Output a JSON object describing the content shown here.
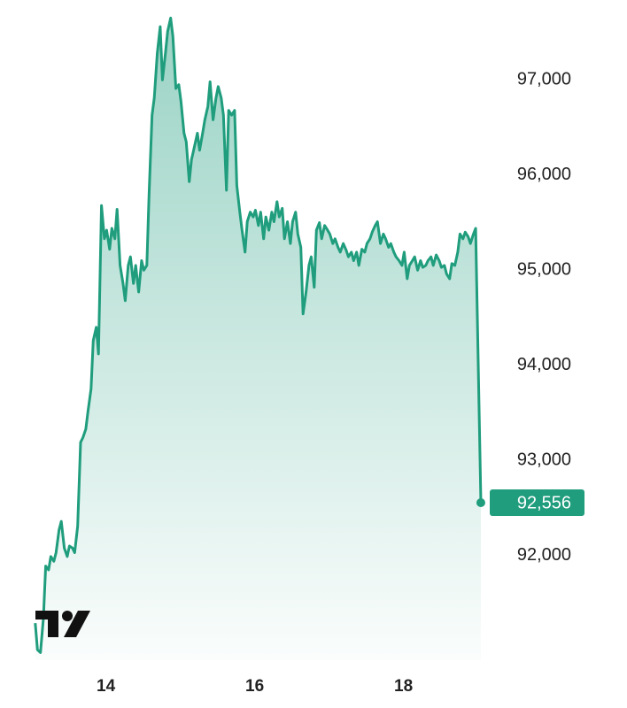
{
  "chart_data": {
    "type": "area",
    "color": "#1f9d7d",
    "xlim": [
      12.6,
      19.1
    ],
    "ylim": [
      90900,
      97840
    ],
    "xticks": [
      14,
      16,
      18
    ],
    "yticks": [
      {
        "value": 92000,
        "label": "92,000"
      },
      {
        "value": 93000,
        "label": "93,000"
      },
      {
        "value": 94000,
        "label": "94,000"
      },
      {
        "value": 95000,
        "label": "95,000"
      },
      {
        "value": 96000,
        "label": "96,000"
      },
      {
        "value": 97000,
        "label": "97,000"
      }
    ],
    "x": [
      13.05,
      13.08,
      13.12,
      13.16,
      13.19,
      13.23,
      13.26,
      13.3,
      13.33,
      13.37,
      13.4,
      13.44,
      13.48,
      13.51,
      13.55,
      13.58,
      13.62,
      13.66,
      13.69,
      13.73,
      13.76,
      13.8,
      13.83,
      13.87,
      13.9,
      13.94,
      13.98,
      14.01,
      14.05,
      14.08,
      14.12,
      14.15,
      14.19,
      14.23,
      14.26,
      14.3,
      14.33,
      14.37,
      14.4,
      14.44,
      14.48,
      14.51,
      14.55,
      14.58,
      14.62,
      14.65,
      14.69,
      14.73,
      14.76,
      14.8,
      14.83,
      14.87,
      14.9,
      14.94,
      14.98,
      15.01,
      15.05,
      15.08,
      15.12,
      15.15,
      15.19,
      15.23,
      15.26,
      15.3,
      15.33,
      15.37,
      15.4,
      15.44,
      15.48,
      15.51,
      15.55,
      15.58,
      15.62,
      15.65,
      15.69,
      15.73,
      15.76,
      15.8,
      15.83,
      15.87,
      15.9,
      15.94,
      15.98,
      16.01,
      16.05,
      16.08,
      16.12,
      16.15,
      16.19,
      16.23,
      16.26,
      16.3,
      16.33,
      16.37,
      16.4,
      16.44,
      16.48,
      16.51,
      16.55,
      16.58,
      16.62,
      16.65,
      16.69,
      16.73,
      16.76,
      16.8,
      16.83,
      16.87,
      16.9,
      16.94,
      16.98,
      17.01,
      17.05,
      17.08,
      17.12,
      17.15,
      17.19,
      17.23,
      17.26,
      17.3,
      17.33,
      17.37,
      17.4,
      17.44,
      17.48,
      17.51,
      17.55,
      17.58,
      17.62,
      17.65,
      17.69,
      17.73,
      17.76,
      17.8,
      17.83,
      17.87,
      17.9,
      17.94,
      17.98,
      18.01,
      18.05,
      18.08,
      18.12,
      18.15,
      18.19,
      18.23,
      18.26,
      18.3,
      18.33,
      18.37,
      18.4,
      18.44,
      18.48,
      18.51,
      18.55,
      18.58,
      18.62,
      18.65,
      18.69,
      18.73,
      18.76,
      18.8,
      18.83,
      18.87,
      18.9,
      18.94,
      18.97,
      19.04
    ],
    "values": [
      91290,
      91010,
      90980,
      91340,
      91890,
      91850,
      91990,
      91940,
      92030,
      92270,
      92360,
      92080,
      91990,
      92100,
      92080,
      92030,
      92310,
      93190,
      93240,
      93330,
      93520,
      93750,
      94260,
      94400,
      94120,
      95680,
      95330,
      95420,
      95220,
      95440,
      95330,
      95640,
      95050,
      94860,
      94680,
      95050,
      95140,
      94860,
      95050,
      94770,
      95100,
      95000,
      95050,
      95790,
      96630,
      96810,
      97280,
      97560,
      97000,
      97280,
      97510,
      97650,
      97460,
      96910,
      96950,
      96770,
      96440,
      96350,
      95930,
      96160,
      96300,
      96440,
      96260,
      96440,
      96580,
      96720,
      96980,
      96580,
      96810,
      96930,
      96810,
      96630,
      95840,
      96680,
      96630,
      96680,
      95890,
      95610,
      95420,
      95190,
      95510,
      95610,
      95560,
      95630,
      95470,
      95610,
      95330,
      95560,
      95420,
      95610,
      95510,
      95720,
      95560,
      95650,
      95330,
      95510,
      95280,
      95510,
      95610,
      95380,
      95240,
      94540,
      94770,
      95050,
      95140,
      94820,
      95420,
      95500,
      95330,
      95470,
      95420,
      95380,
      95280,
      95330,
      95240,
      95190,
      95280,
      95210,
      95140,
      95190,
      95100,
      95190,
      95050,
      95220,
      95190,
      95280,
      95330,
      95400,
      95470,
      95510,
      95280,
      95380,
      95330,
      95240,
      95280,
      95190,
      95140,
      95100,
      95050,
      95190,
      94910,
      95050,
      95100,
      95140,
      95000,
      95100,
      95030,
      95050,
      95100,
      95140,
      95050,
      95160,
      95100,
      95030,
      95050,
      94960,
      94910,
      95070,
      95050,
      95190,
      95380,
      95330,
      95400,
      95350,
      95280,
      95380,
      95440,
      92556
    ],
    "last_value_label": "92,556"
  }
}
